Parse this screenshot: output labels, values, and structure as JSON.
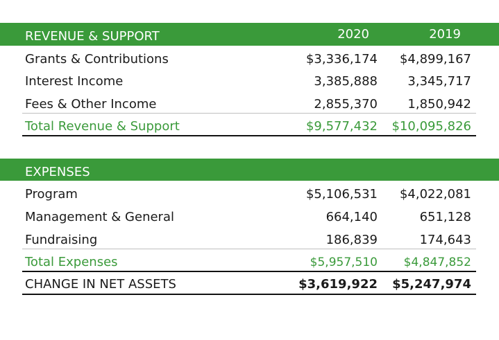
{
  "revenue": {
    "header": "REVENUE & SUPPORT",
    "col_2020": "2020",
    "col_2019": "2019",
    "rows": [
      {
        "label": "Grants & Contributions",
        "v2020": "$3,336,174",
        "v2019": "$4,899,167"
      },
      {
        "label": "Interest Income",
        "v2020": "3,385,888",
        "v2019": "3,345,717"
      },
      {
        "label": "Fees & Other Income",
        "v2020": "2,855,370",
        "v2019": "1,850,942"
      }
    ],
    "total": {
      "label": "Total Revenue & Support",
      "v2020": "$9,577,432",
      "v2019": "$10,095,826"
    }
  },
  "expenses": {
    "header": "EXPENSES",
    "rows": [
      {
        "label": "Program",
        "v2020": "$5,106,531",
        "v2019": "$4,022,081"
      },
      {
        "label": "Management & General",
        "v2020": "664,140",
        "v2019": "651,128"
      },
      {
        "label": "Fundraising",
        "v2020": "186,839",
        "v2019": "174,643"
      }
    ],
    "total": {
      "label": "Total Expenses",
      "v2020": "$5,957,510",
      "v2019": "$4,847,852"
    }
  },
  "net": {
    "label": "CHANGE IN NET ASSETS",
    "v2020": "$3,619,922",
    "v2019": "$5,247,974"
  },
  "colors": {
    "accent": "#3a9a3a"
  }
}
